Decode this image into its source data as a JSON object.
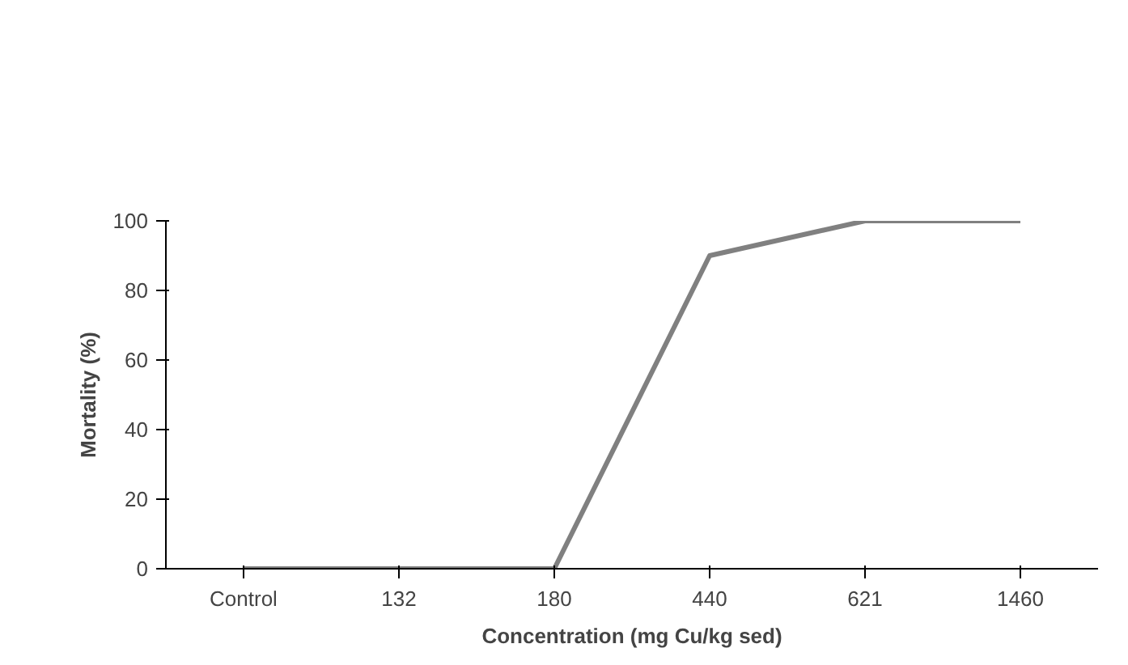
{
  "chart_data": {
    "type": "line",
    "xlabel": "Concentration (mg Cu/kg sed)",
    "ylabel": "Mortality (%)",
    "categories": [
      "Control",
      "132",
      "180",
      "440",
      "621",
      "1460"
    ],
    "series": [
      {
        "color": "#808080",
        "values": [
          0,
          0,
          0,
          90,
          100,
          100
        ]
      }
    ],
    "ylim": [
      0,
      100
    ],
    "yticks": [
      0,
      20,
      40,
      60,
      80,
      100
    ],
    "grid": false,
    "marker": "none",
    "line_style": "solid"
  }
}
